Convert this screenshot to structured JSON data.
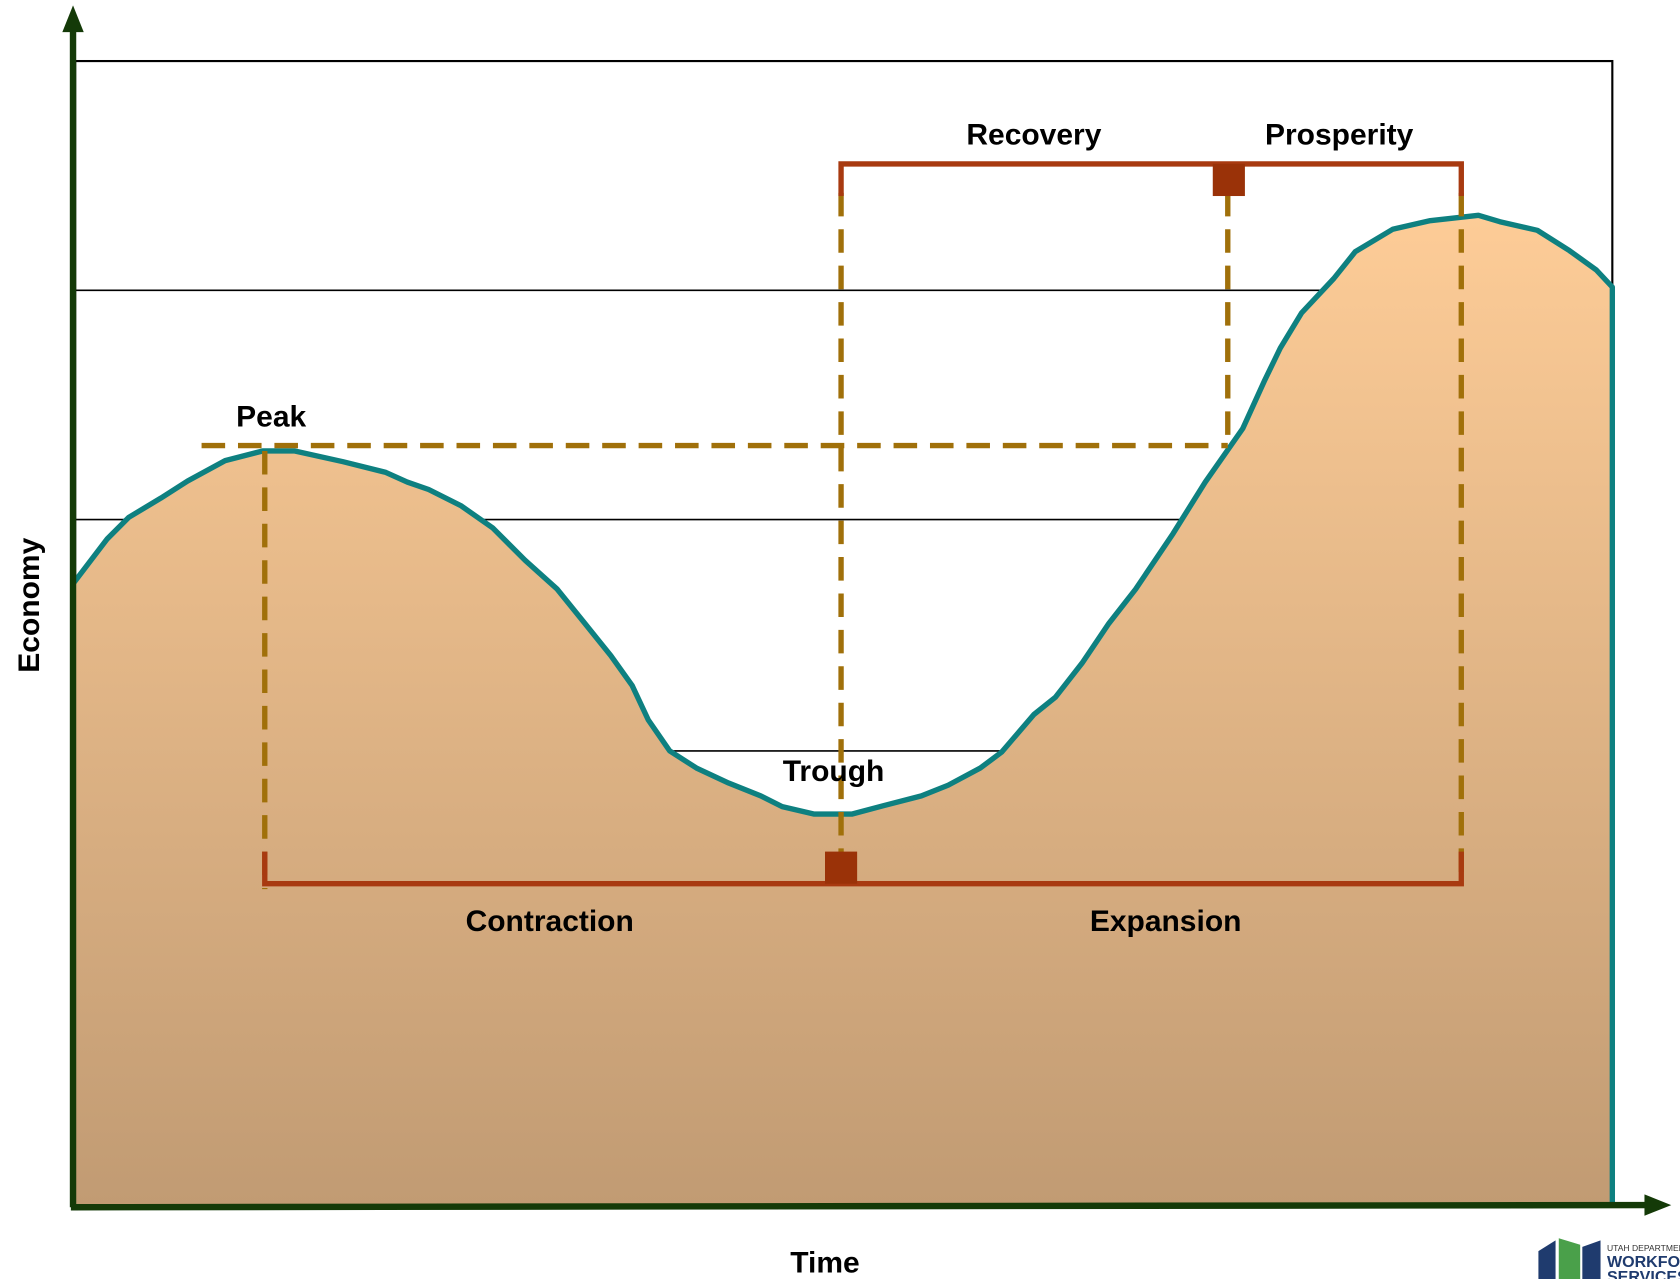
{
  "axes": {
    "y_label": "Economy",
    "x_label": "Time"
  },
  "labels": {
    "peak": "Peak",
    "trough": "Trough",
    "recovery": "Recovery",
    "prosperity": "Prosperity",
    "contraction": "Contraction",
    "expansion": "Expansion"
  },
  "logo": {
    "line1": "UTAH DEPARTMENT OF",
    "line2": "WORKFORCE",
    "line3": "SERVICES"
  }
}
